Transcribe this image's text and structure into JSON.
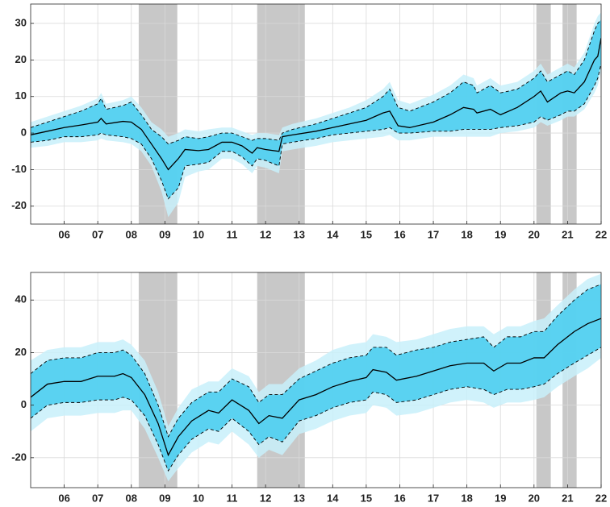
{
  "chart_data": [
    {
      "type": "fan",
      "x": [
        2005.0,
        2005.5,
        2006.0,
        2006.5,
        2007.0,
        2007.1,
        2007.25,
        2007.75,
        2008.0,
        2008.3,
        2008.6,
        2008.9,
        2009.1,
        2009.4,
        2009.6,
        2010.0,
        2010.3,
        2010.7,
        2011.0,
        2011.3,
        2011.6,
        2011.75,
        2012.0,
        2012.4,
        2012.5,
        2012.8,
        2013.5,
        2014.0,
        2014.5,
        2015.0,
        2015.5,
        2015.7,
        2015.95,
        2016.3,
        2017.0,
        2017.5,
        2017.9,
        2018.2,
        2018.3,
        2018.7,
        2019.0,
        2019.5,
        2020.0,
        2020.2,
        2020.4,
        2020.8,
        2021.0,
        2021.2,
        2021.5,
        2021.8,
        2021.9,
        2022.0
      ],
      "xlim": [
        2005.0,
        2022.0
      ],
      "xticks": [
        {
          "value": 2006,
          "label": "06"
        },
        {
          "value": 2007,
          "label": "07"
        },
        {
          "value": 2008,
          "label": "08"
        },
        {
          "value": 2009,
          "label": "09"
        },
        {
          "value": 2010,
          "label": "10"
        },
        {
          "value": 2011,
          "label": "11"
        },
        {
          "value": 2012,
          "label": "12"
        },
        {
          "value": 2013,
          "label": "13"
        },
        {
          "value": 2014,
          "label": "14"
        },
        {
          "value": 2015,
          "label": "15"
        },
        {
          "value": 2016,
          "label": "16"
        },
        {
          "value": 2017,
          "label": "17"
        },
        {
          "value": 2018,
          "label": "18"
        },
        {
          "value": 2019,
          "label": "19"
        },
        {
          "value": 2020,
          "label": "20"
        },
        {
          "value": 2021,
          "label": "21"
        },
        {
          "value": 2022,
          "label": "22"
        }
      ],
      "ylim": [
        -24.9,
        35.3
      ],
      "yticks": [
        -20,
        -10,
        0,
        10,
        20,
        30
      ],
      "grid": true,
      "shaded_regions": [
        [
          2008.22,
          2009.37
        ],
        [
          2011.75,
          2013.17
        ],
        [
          2020.07,
          2020.5
        ],
        [
          2020.85,
          2021.27
        ]
      ],
      "shade_color": "#c8c8c8",
      "bands": [
        {
          "color": "#c8f0fa",
          "lower": [
            -4,
            -3.5,
            -2.5,
            -2.5,
            -2,
            -1.5,
            -2,
            -2.5,
            -3,
            -5,
            -9,
            -16,
            -23,
            -19,
            -12,
            -10.5,
            -10,
            -7,
            -7,
            -8.5,
            -11,
            -9,
            -9.5,
            -11,
            -5,
            -4.5,
            -3.5,
            -2.5,
            -2,
            -1.5,
            -1,
            -0.5,
            -2,
            -2,
            -1,
            -1,
            -1,
            -1,
            -1,
            -1,
            0,
            0.5,
            1.5,
            3,
            2,
            3.5,
            4.5,
            4.5,
            6.5,
            11,
            13,
            17
          ],
          "upper": [
            3,
            4.5,
            6,
            7.5,
            9.5,
            11,
            8,
            9,
            10,
            7,
            3,
            1,
            -1,
            0,
            1,
            0.5,
            1,
            1.5,
            1.5,
            0.5,
            -0.5,
            0,
            0,
            -0.5,
            1.5,
            2.5,
            4,
            5.5,
            7,
            9,
            12,
            14,
            9,
            8,
            10.5,
            13,
            16,
            15,
            13,
            15,
            13,
            14,
            17,
            19,
            16,
            18,
            19,
            18,
            22,
            30,
            32,
            33
          ]
        },
        {
          "color": "#45cdee",
          "line_color": "#000000",
          "line_style": "dashed",
          "lower": [
            -2.5,
            -2,
            -1,
            -1,
            -0.5,
            0,
            -0.5,
            -1,
            -1.5,
            -3,
            -7,
            -13,
            -18,
            -15,
            -9,
            -8.5,
            -8,
            -5,
            -5,
            -6.5,
            -9,
            -7,
            -7.5,
            -9,
            -3,
            -2.5,
            -1.5,
            -0.5,
            0,
            0.5,
            1,
            1.5,
            0,
            0,
            0.5,
            0.5,
            1,
            1,
            1,
            1,
            1.5,
            2,
            3,
            4.5,
            3.5,
            5,
            6,
            6,
            8,
            13,
            15,
            19
          ],
          "upper": [
            1.5,
            3,
            4.5,
            6,
            8,
            9.5,
            6.5,
            7.5,
            8.5,
            5,
            1,
            -1,
            -3,
            -2,
            -1,
            -1.5,
            -1,
            0,
            0,
            -1,
            -2,
            -1.5,
            -1.5,
            -2,
            0,
            1,
            2.5,
            4,
            5.5,
            7,
            10,
            12,
            7,
            6,
            8.5,
            11,
            14,
            13,
            11,
            13,
            11,
            12,
            15,
            17,
            14,
            16,
            17,
            16,
            20,
            28,
            30,
            31
          ]
        }
      ],
      "median": {
        "color": "#000000",
        "values": [
          -0.5,
          0.5,
          1.5,
          2.2,
          3,
          4,
          2.5,
          3.2,
          3,
          1,
          -3,
          -7,
          -10,
          -7,
          -4.5,
          -4.8,
          -4.5,
          -2.5,
          -2.5,
          -3.5,
          -5.5,
          -4,
          -4.5,
          -5,
          -1,
          -0.5,
          0.5,
          1.5,
          2.5,
          3.5,
          5.5,
          6,
          2,
          1.5,
          3,
          5,
          7,
          6.5,
          5.5,
          6.5,
          5,
          7,
          10,
          11.5,
          8.5,
          11,
          11.5,
          11,
          14,
          20,
          21,
          26
        ]
      }
    },
    {
      "type": "fan",
      "x": [
        2005.0,
        2005.5,
        2006.0,
        2006.5,
        2007.0,
        2007.5,
        2007.75,
        2008.0,
        2008.4,
        2008.8,
        2009.1,
        2009.4,
        2009.8,
        2010.3,
        2010.6,
        2011.0,
        2011.5,
        2011.8,
        2012.1,
        2012.5,
        2013.0,
        2013.5,
        2014.0,
        2014.5,
        2015.0,
        2015.2,
        2015.6,
        2015.9,
        2016.5,
        2017.0,
        2017.5,
        2018.0,
        2018.5,
        2018.8,
        2019.2,
        2019.6,
        2020.0,
        2020.3,
        2020.7,
        2021.2,
        2021.6,
        2022.0
      ],
      "xlim": [
        2005.0,
        2022.0
      ],
      "xticks": [
        {
          "value": 2006,
          "label": "06"
        },
        {
          "value": 2007,
          "label": "07"
        },
        {
          "value": 2008,
          "label": "08"
        },
        {
          "value": 2009,
          "label": "09"
        },
        {
          "value": 2010,
          "label": "10"
        },
        {
          "value": 2011,
          "label": "11"
        },
        {
          "value": 2012,
          "label": "12"
        },
        {
          "value": 2013,
          "label": "13"
        },
        {
          "value": 2014,
          "label": "14"
        },
        {
          "value": 2015,
          "label": "15"
        },
        {
          "value": 2016,
          "label": "16"
        },
        {
          "value": 2017,
          "label": "17"
        },
        {
          "value": 2018,
          "label": "18"
        },
        {
          "value": 2019,
          "label": "19"
        },
        {
          "value": 2020,
          "label": "20"
        },
        {
          "value": 2021,
          "label": "21"
        },
        {
          "value": 2022,
          "label": "22"
        }
      ],
      "ylim": [
        -31.4,
        50.5
      ],
      "yticks": [
        -20,
        0,
        20,
        40
      ],
      "grid": true,
      "shaded_regions": [
        [
          2008.22,
          2009.37
        ],
        [
          2011.75,
          2013.17
        ],
        [
          2020.07,
          2020.5
        ],
        [
          2020.85,
          2021.27
        ]
      ],
      "shade_color": "#c8c8c8",
      "bands": [
        {
          "color": "#c8f0fa",
          "lower": [
            -10,
            -5,
            -4,
            -4,
            -3,
            -3,
            -2,
            -2,
            -9,
            -20,
            -29,
            -24,
            -18,
            -14,
            -15,
            -10,
            -15,
            -20,
            -17,
            -19,
            -11,
            -9,
            -6,
            -4,
            -3,
            0,
            -1,
            -4,
            -3,
            -1,
            1,
            2,
            1,
            -1,
            1,
            1,
            2,
            3,
            7,
            11,
            14,
            18
          ],
          "upper": [
            17,
            21,
            22,
            22,
            24,
            24,
            25,
            23,
            17,
            5,
            -8,
            -1,
            6,
            9,
            9,
            14,
            11,
            5,
            8,
            8,
            14,
            17,
            21,
            23,
            24,
            27,
            26,
            24,
            25,
            27,
            29,
            30,
            30,
            27,
            30,
            30,
            32,
            33,
            38,
            44,
            48,
            50
          ]
        },
        {
          "color": "#45cdee",
          "line_color": "#000000",
          "line_style": "dashed",
          "lower": [
            -5,
            0,
            1,
            1,
            2,
            2,
            3,
            2,
            -4,
            -15,
            -25,
            -19,
            -13,
            -9,
            -10,
            -5,
            -10,
            -15,
            -12,
            -14,
            -6,
            -4,
            -1,
            1,
            2,
            5,
            4,
            1,
            2,
            4,
            6,
            7,
            6,
            4,
            6,
            6,
            7,
            8,
            12,
            16,
            19,
            22
          ],
          "upper": [
            12,
            17,
            18,
            18,
            20,
            20,
            21,
            19,
            12,
            0,
            -12,
            -5,
            1,
            5,
            5,
            10,
            7,
            1,
            4,
            4,
            10,
            13,
            16,
            18,
            19,
            22,
            22,
            19,
            21,
            22,
            24,
            25,
            26,
            22,
            26,
            26,
            28,
            28,
            34,
            40,
            44,
            46
          ]
        }
      ],
      "median": {
        "color": "#000000",
        "values": [
          3,
          8,
          9,
          9,
          11,
          11,
          12,
          10.5,
          4,
          -7,
          -19,
          -12,
          -6,
          -2,
          -3,
          2,
          -2,
          -7,
          -4,
          -5,
          2,
          4,
          7,
          9,
          10.5,
          13.5,
          12.5,
          9.5,
          11,
          13,
          15,
          16,
          16,
          13,
          16,
          16,
          18,
          18,
          23,
          28,
          31,
          33
        ]
      }
    }
  ]
}
